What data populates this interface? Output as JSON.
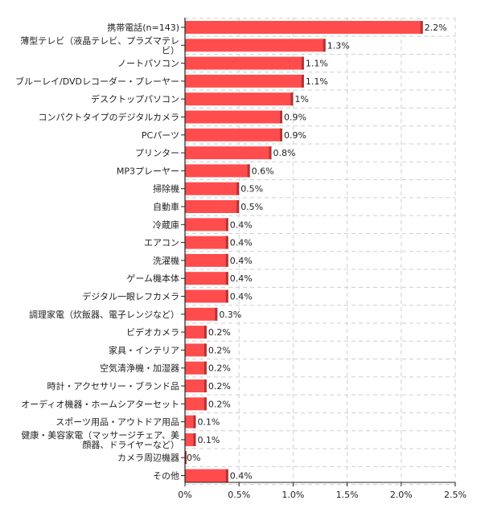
{
  "chart_data": {
    "type": "bar",
    "orientation": "horizontal",
    "title": "",
    "xlabel": "",
    "ylabel": "",
    "xlim": [
      0,
      2.5
    ],
    "x_ticks": [
      0,
      0.5,
      1.0,
      1.5,
      2.0,
      2.5
    ],
    "x_tick_labels": [
      "0%",
      "0.5%",
      "1.0%",
      "1.5%",
      "2.0%",
      "2.5%"
    ],
    "grid": true,
    "legend": "none",
    "bar_color": "#ff4c4c",
    "bar_edge_color": "#b53333",
    "categories": [
      [
        "携帯電話(n=143)"
      ],
      [
        "薄型テレビ（液晶テレビ、プラズマテレ",
        "ビ）"
      ],
      [
        "ノートパソコン"
      ],
      [
        "ブルーレイ/DVDレコーダー・プレーヤー"
      ],
      [
        "デスクトップパソコン"
      ],
      [
        "コンパクトタイプのデジタルカメラ"
      ],
      [
        "PCパーツ"
      ],
      [
        "プリンター"
      ],
      [
        "MP3プレーヤー"
      ],
      [
        "掃除機"
      ],
      [
        "自動車"
      ],
      [
        "冷蔵庫"
      ],
      [
        "エアコン"
      ],
      [
        "洗濯機"
      ],
      [
        "ゲーム機本体"
      ],
      [
        "デジタル一眼レフカメラ"
      ],
      [
        "調理家電（炊飯器、電子レンジなど）"
      ],
      [
        "ビデオカメラ"
      ],
      [
        "家具・インテリア"
      ],
      [
        "空気清浄機・加湿器"
      ],
      [
        "時計・アクセサリー・ブランド品"
      ],
      [
        "オーディオ機器・ホームシアターセット"
      ],
      [
        "スポーツ用品・アウトドア用品"
      ],
      [
        "健康・美容家電（マッサージチェア、美",
        "顔器、ドライヤーなど）"
      ],
      [
        "カメラ周辺機器"
      ],
      [
        "その他"
      ]
    ],
    "values": [
      2.2,
      1.3,
      1.1,
      1.1,
      1.0,
      0.9,
      0.9,
      0.8,
      0.6,
      0.5,
      0.5,
      0.4,
      0.4,
      0.4,
      0.4,
      0.4,
      0.3,
      0.2,
      0.2,
      0.2,
      0.2,
      0.2,
      0.1,
      0.1,
      0.0,
      0.4
    ],
    "value_labels": [
      "2.2%",
      "1.3%",
      "1.1%",
      "1.1%",
      "1%",
      "0.9%",
      "0.9%",
      "0.8%",
      "0.6%",
      "0.5%",
      "0.5%",
      "0.4%",
      "0.4%",
      "0.4%",
      "0.4%",
      "0.4%",
      "0.3%",
      "0.2%",
      "0.2%",
      "0.2%",
      "0.2%",
      "0.2%",
      "0.1%",
      "0.1%",
      "0%",
      "0.4%"
    ]
  }
}
